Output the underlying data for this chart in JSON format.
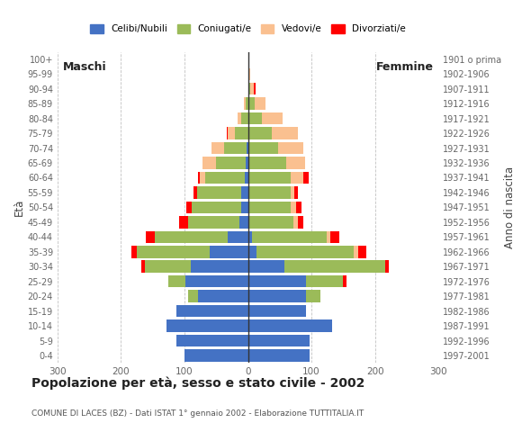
{
  "age_groups": [
    "0-4",
    "5-9",
    "10-14",
    "15-19",
    "20-24",
    "25-29",
    "30-34",
    "35-39",
    "40-44",
    "45-49",
    "50-54",
    "55-59",
    "60-64",
    "65-69",
    "70-74",
    "75-79",
    "80-84",
    "85-89",
    "90-94",
    "95-99",
    "100+"
  ],
  "birth_years": [
    "1997-2001",
    "1992-1996",
    "1987-1991",
    "1982-1986",
    "1977-1981",
    "1972-1976",
    "1967-1971",
    "1962-1966",
    "1957-1961",
    "1952-1956",
    "1947-1951",
    "1942-1946",
    "1937-1941",
    "1932-1936",
    "1927-1931",
    "1922-1926",
    "1917-1921",
    "1912-1916",
    "1907-1911",
    "1902-1906",
    "1901 o prima"
  ],
  "males": {
    "celibi": [
      100,
      112,
      128,
      112,
      78,
      98,
      90,
      60,
      32,
      14,
      10,
      10,
      5,
      3,
      2,
      0,
      0,
      0,
      0,
      0,
      0
    ],
    "coniugati": [
      0,
      0,
      0,
      0,
      16,
      27,
      72,
      115,
      115,
      80,
      78,
      70,
      62,
      48,
      35,
      20,
      10,
      3,
      0,
      0,
      0
    ],
    "vedovi": [
      0,
      0,
      0,
      0,
      0,
      0,
      0,
      0,
      0,
      0,
      0,
      0,
      9,
      20,
      20,
      12,
      6,
      3,
      0,
      0,
      0
    ],
    "divorziati": [
      0,
      0,
      0,
      0,
      0,
      0,
      6,
      9,
      14,
      14,
      9,
      6,
      2,
      0,
      0,
      2,
      0,
      0,
      0,
      0,
      0
    ]
  },
  "females": {
    "nubili": [
      97,
      97,
      132,
      92,
      92,
      92,
      58,
      14,
      6,
      0,
      0,
      0,
      0,
      0,
      0,
      0,
      0,
      0,
      0,
      0,
      0
    ],
    "coniugate": [
      0,
      0,
      0,
      0,
      22,
      57,
      158,
      153,
      118,
      72,
      67,
      67,
      67,
      60,
      47,
      37,
      22,
      10,
      3,
      0,
      0
    ],
    "vedove": [
      0,
      0,
      0,
      0,
      0,
      0,
      0,
      6,
      6,
      6,
      9,
      6,
      20,
      30,
      40,
      42,
      32,
      17,
      6,
      3,
      0
    ],
    "divorziate": [
      0,
      0,
      0,
      0,
      0,
      6,
      6,
      14,
      14,
      9,
      9,
      6,
      9,
      0,
      0,
      0,
      0,
      0,
      3,
      0,
      0
    ]
  },
  "colors": {
    "celibi": "#4472C4",
    "coniugati": "#9BBB59",
    "vedovi": "#FAC090",
    "divorziati": "#FF0000"
  },
  "xlim": 300,
  "title": "Popolazione per età, sesso e stato civile - 2002",
  "subtitle": "COMUNE DI LACES (BZ) - Dati ISTAT 1° gennaio 2002 - Elaborazione TUTTITALIA.IT",
  "ylabel_left": "Età",
  "ylabel_right": "Anno di nascita",
  "label_maschi": "Maschi",
  "label_femmine": "Femmine",
  "legend_labels": [
    "Celibi/Nubili",
    "Coniugati/e",
    "Vedovi/e",
    "Divorziati/e"
  ],
  "bg_color": "#FFFFFF",
  "plot_bg": "#FFFFFF",
  "grid_color": "#BBBBBB"
}
